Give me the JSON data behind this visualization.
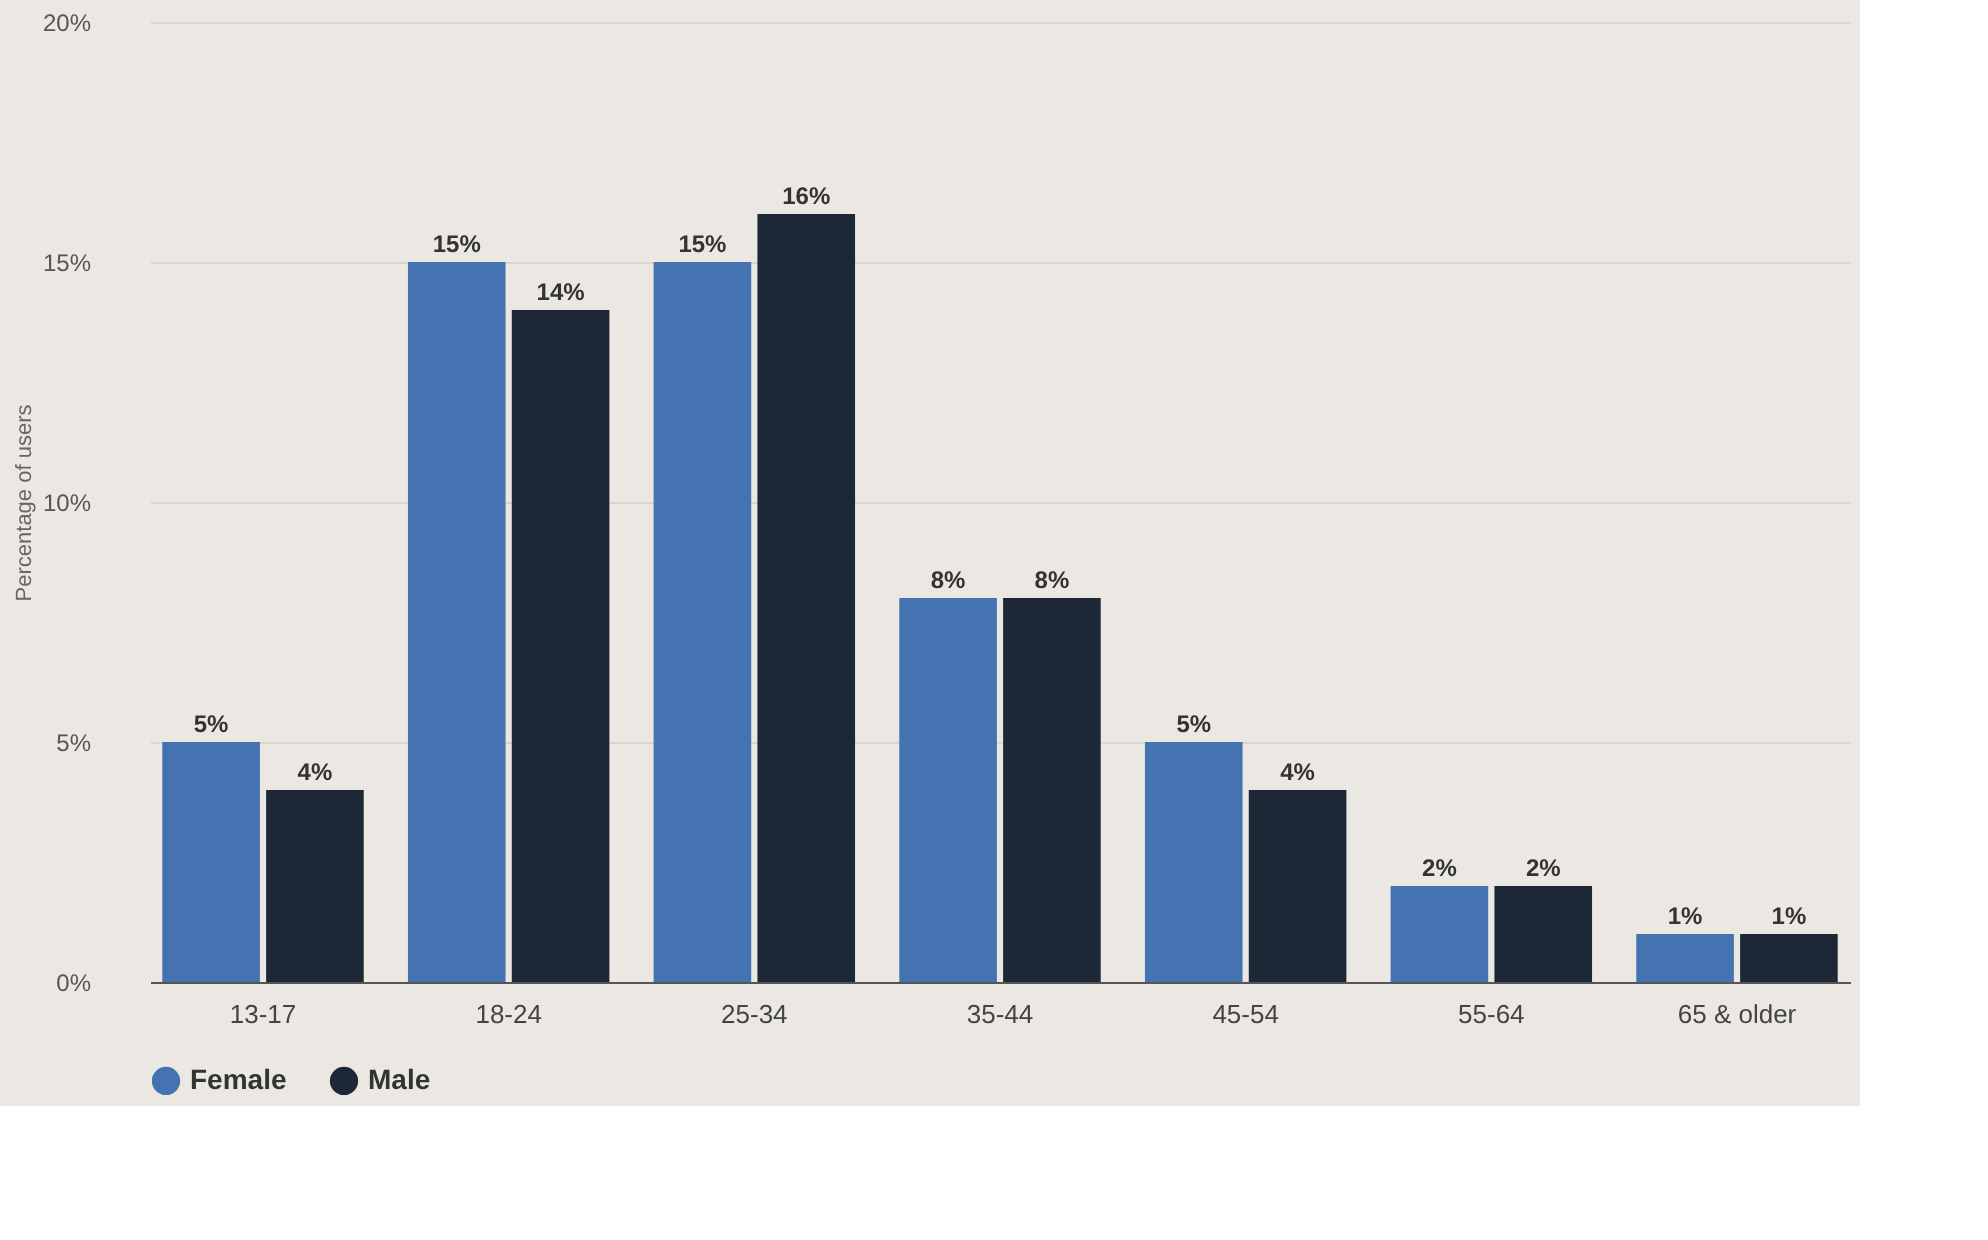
{
  "chart_data": {
    "type": "bar",
    "ylabel": "Percentage of users",
    "categories": [
      "13-17",
      "18-24",
      "25-34",
      "35-44",
      "45-54",
      "55-64",
      "65 & older"
    ],
    "series": [
      {
        "name": "Female",
        "color": "#4572b0",
        "values": [
          5,
          15,
          15,
          8,
          5,
          2,
          1
        ],
        "value_labels": [
          "5%",
          "15%",
          "15%",
          "8%",
          "5%",
          "2%",
          "1%"
        ]
      },
      {
        "name": "Male",
        "color": "#1d2836",
        "values": [
          4,
          14,
          16,
          8,
          4,
          2,
          1
        ],
        "value_labels": [
          "4%",
          "14%",
          "16%",
          "8%",
          "4%",
          "2%",
          "1%"
        ]
      }
    ],
    "ylim": [
      0,
      20
    ],
    "yticks": [
      {
        "value": 0,
        "label": "0%"
      },
      {
        "value": 5,
        "label": "5%"
      },
      {
        "value": 10,
        "label": "10%"
      },
      {
        "value": 15,
        "label": "15%"
      },
      {
        "value": 20,
        "label": "20%"
      }
    ],
    "grid": "y",
    "legend": "bottom"
  }
}
